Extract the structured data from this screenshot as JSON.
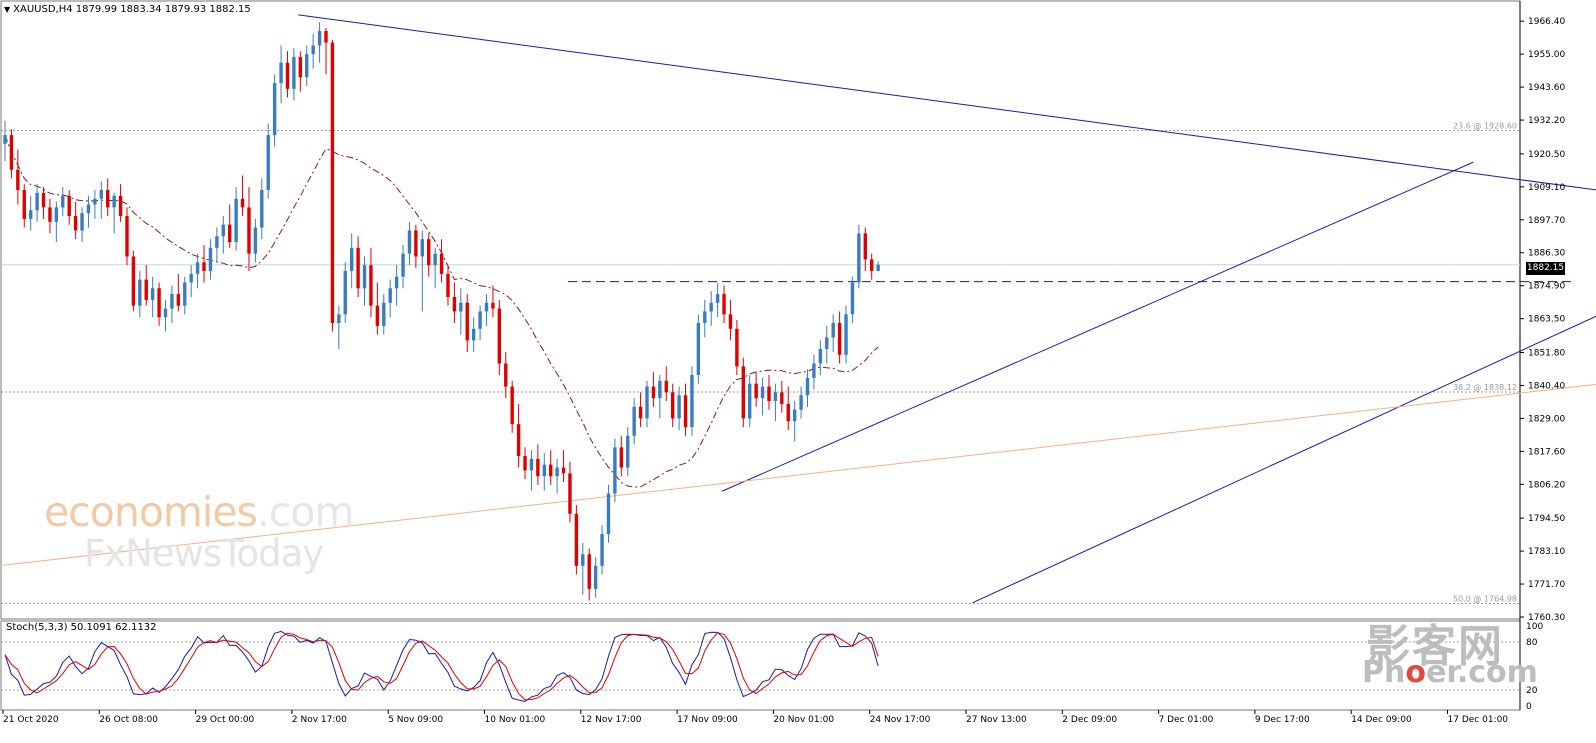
{
  "header": {
    "symbol_line": "XAUUSD,H4  1879.99 1883.34 1879.93 1882.15"
  },
  "stochastic": {
    "label": "Stoch(5,3,3) 50.1091 62.1132"
  },
  "watermarks": {
    "economies": "economies",
    "dotcom": ".com",
    "fxnews": "FxNewsToday",
    "phoer_cn": "影客网",
    "phoer_pre": "Ph",
    "phoer_o": "o",
    "phoer_post": "er.com"
  },
  "current_price": "1882.15",
  "chart_data": {
    "type": "candlestick",
    "symbol": "XAUUSD",
    "timeframe": "H4",
    "ohlc_header": {
      "open": 1879.99,
      "high": 1883.34,
      "low": 1879.93,
      "close": 1882.15
    },
    "price_axis": {
      "ylim": [
        1760.3,
        1972.0
      ],
      "ticks": [
        1966.4,
        1955.0,
        1943.6,
        1932.2,
        1920.5,
        1909.1,
        1897.7,
        1886.3,
        1874.9,
        1863.5,
        1851.8,
        1840.4,
        1829.0,
        1817.6,
        1806.2,
        1794.5,
        1783.1,
        1771.7,
        1760.3
      ],
      "tick_labels": [
        "1966.40",
        "1955.00",
        "1943.60",
        "1932.20",
        "1920.50",
        "1909.10",
        "1897.70",
        "1886.30",
        "1874.90",
        "1863.50",
        "1851.80",
        "1840.40",
        "1829.00",
        "1817.60",
        "1806.20",
        "1794.50",
        "1783.10",
        "1771.70",
        "1760.30"
      ]
    },
    "time_axis": {
      "labels": [
        "21 Oct 2020",
        "26 Oct 08:00",
        "29 Oct 00:00",
        "2 Nov 17:00",
        "5 Nov 09:00",
        "10 Nov 01:00",
        "12 Nov 17:00",
        "17 Nov 09:00",
        "20 Nov 01:00",
        "24 Nov 17:00",
        "27 Nov 13:00",
        "2 Dec 09:00",
        "7 Dec 01:00",
        "9 Dec 17:00",
        "14 Dec 09:00",
        "17 Dec 01:00"
      ],
      "label_bars": [
        0,
        15,
        30,
        45,
        60,
        75,
        90,
        105,
        120,
        135,
        150,
        165,
        180,
        195,
        210,
        225
      ]
    },
    "fib_levels": [
      {
        "label": "23.6 @ 1928.60",
        "price": 1928.6
      },
      {
        "label": "38.2 @ 1838.12",
        "price": 1838.12
      },
      {
        "label": "50.0 @ 1764.98",
        "price": 1764.98
      }
    ],
    "trendlines": [
      {
        "name": "descending-resistance",
        "from": {
          "bar": 46,
          "price": 1968.6
        },
        "to": {
          "bar": 305,
          "price": 1891.0
        },
        "color": "#1a1aa8"
      },
      {
        "name": "channel-upper",
        "from": {
          "bar": 112,
          "price": 1803.8
        },
        "to": {
          "bar": 229,
          "price": 1917.6
        },
        "color": "#1a1aa8"
      },
      {
        "name": "channel-lower",
        "from": {
          "bar": 151,
          "price": 1765.2
        },
        "to": {
          "bar": 263,
          "price": 1879.5
        },
        "color": "#1a1aa8"
      },
      {
        "name": "long-term-support",
        "from": {
          "bar": 0,
          "price": 1778.2
        },
        "to": {
          "bar": 353,
          "price": 1867.2
        },
        "color": "#f5b08a"
      }
    ],
    "horizontal_levels": [
      {
        "name": "dashed-support",
        "price": 1876.3,
        "from_bar": 88,
        "to_bar": 245,
        "color": "#1a1aa8"
      }
    ],
    "current_price": 1882.15,
    "candles": [
      [
        1924,
        1932,
        1918,
        1927
      ],
      [
        1927,
        1929,
        1912,
        1915
      ],
      [
        1915,
        1922,
        1903,
        1908
      ],
      [
        1908,
        1910,
        1895,
        1898
      ],
      [
        1898,
        1906,
        1894,
        1901
      ],
      [
        1901,
        1910,
        1897,
        1907
      ],
      [
        1907,
        1909,
        1898,
        1902
      ],
      [
        1902,
        1905,
        1893,
        1897
      ],
      [
        1897,
        1904,
        1890,
        1902
      ],
      [
        1902,
        1909,
        1899,
        1906
      ],
      [
        1906,
        1908,
        1896,
        1899
      ],
      [
        1899,
        1904,
        1891,
        1894
      ],
      [
        1894,
        1902,
        1890,
        1900
      ],
      [
        1900,
        1906,
        1895,
        1903
      ],
      [
        1903,
        1908,
        1898,
        1905
      ],
      [
        1905,
        1911,
        1898,
        1908
      ],
      [
        1908,
        1912,
        1899,
        1902
      ],
      [
        1902,
        1907,
        1893,
        1906
      ],
      [
        1906,
        1910,
        1897,
        1899
      ],
      [
        1899,
        1902,
        1882,
        1885
      ],
      [
        1885,
        1887,
        1866,
        1868
      ],
      [
        1868,
        1880,
        1864,
        1877
      ],
      [
        1877,
        1882,
        1868,
        1870
      ],
      [
        1870,
        1878,
        1864,
        1874
      ],
      [
        1874,
        1876,
        1861,
        1864
      ],
      [
        1864,
        1870,
        1859,
        1867
      ],
      [
        1867,
        1875,
        1862,
        1872
      ],
      [
        1872,
        1879,
        1866,
        1868
      ],
      [
        1868,
        1878,
        1865,
        1876
      ],
      [
        1876,
        1882,
        1871,
        1879
      ],
      [
        1879,
        1886,
        1874,
        1883
      ],
      [
        1883,
        1889,
        1876,
        1880
      ],
      [
        1880,
        1891,
        1877,
        1888
      ],
      [
        1888,
        1895,
        1883,
        1892
      ],
      [
        1892,
        1899,
        1886,
        1896
      ],
      [
        1896,
        1903,
        1888,
        1890
      ],
      [
        1890,
        1909,
        1887,
        1905
      ],
      [
        1905,
        1913,
        1899,
        1902
      ],
      [
        1902,
        1909,
        1880,
        1886
      ],
      [
        1886,
        1898,
        1883,
        1895
      ],
      [
        1895,
        1912,
        1891,
        1908
      ],
      [
        1908,
        1931,
        1905,
        1927
      ],
      [
        1927,
        1948,
        1923,
        1945
      ],
      [
        1945,
        1958,
        1938,
        1952
      ],
      [
        1952,
        1956,
        1940,
        1943
      ],
      [
        1943,
        1957,
        1939,
        1954
      ],
      [
        1954,
        1956,
        1942,
        1947
      ],
      [
        1947,
        1958,
        1944,
        1955
      ],
      [
        1955,
        1962,
        1950,
        1958
      ],
      [
        1958,
        1966,
        1952,
        1963
      ],
      [
        1963,
        1964,
        1948,
        1959
      ],
      [
        1959,
        1960,
        1859,
        1862
      ],
      [
        1862,
        1868,
        1853,
        1865
      ],
      [
        1865,
        1883,
        1862,
        1880
      ],
      [
        1880,
        1893,
        1874,
        1888
      ],
      [
        1888,
        1892,
        1871,
        1874
      ],
      [
        1874,
        1885,
        1868,
        1882
      ],
      [
        1882,
        1888,
        1864,
        1868
      ],
      [
        1868,
        1876,
        1858,
        1861
      ],
      [
        1861,
        1872,
        1858,
        1869
      ],
      [
        1869,
        1877,
        1864,
        1874
      ],
      [
        1874,
        1882,
        1868,
        1878
      ],
      [
        1878,
        1889,
        1874,
        1886
      ],
      [
        1886,
        1897,
        1882,
        1894
      ],
      [
        1894,
        1896,
        1881,
        1885
      ],
      [
        1885,
        1894,
        1866,
        1891
      ],
      [
        1891,
        1893,
        1878,
        1882
      ],
      [
        1882,
        1888,
        1874,
        1886
      ],
      [
        1886,
        1891,
        1876,
        1879
      ],
      [
        1879,
        1882,
        1868,
        1871
      ],
      [
        1871,
        1876,
        1862,
        1866
      ],
      [
        1866,
        1874,
        1858,
        1869
      ],
      [
        1869,
        1872,
        1852,
        1856
      ],
      [
        1856,
        1864,
        1852,
        1860
      ],
      [
        1860,
        1868,
        1856,
        1866
      ],
      [
        1866,
        1872,
        1861,
        1869
      ],
      [
        1869,
        1875,
        1864,
        1867
      ],
      [
        1867,
        1870,
        1844,
        1848
      ],
      [
        1848,
        1852,
        1836,
        1840
      ],
      [
        1840,
        1842,
        1824,
        1827
      ],
      [
        1827,
        1834,
        1812,
        1816
      ],
      [
        1816,
        1819,
        1808,
        1811
      ],
      [
        1811,
        1818,
        1804,
        1815
      ],
      [
        1815,
        1820,
        1806,
        1809
      ],
      [
        1809,
        1817,
        1804,
        1813
      ],
      [
        1813,
        1818,
        1806,
        1809
      ],
      [
        1809,
        1815,
        1803,
        1812
      ],
      [
        1812,
        1818,
        1807,
        1810
      ],
      [
        1810,
        1814,
        1793,
        1796
      ],
      [
        1796,
        1799,
        1775,
        1778
      ],
      [
        1778,
        1786,
        1768,
        1782
      ],
      [
        1782,
        1784,
        1766,
        1770
      ],
      [
        1770,
        1781,
        1767,
        1778
      ],
      [
        1778,
        1792,
        1775,
        1789
      ],
      [
        1789,
        1806,
        1786,
        1803
      ],
      [
        1803,
        1822,
        1800,
        1819
      ],
      [
        1819,
        1823,
        1809,
        1812
      ],
      [
        1812,
        1826,
        1809,
        1823
      ],
      [
        1823,
        1836,
        1820,
        1833
      ],
      [
        1833,
        1838,
        1826,
        1829
      ],
      [
        1829,
        1842,
        1826,
        1840
      ],
      [
        1840,
        1845,
        1833,
        1836
      ],
      [
        1836,
        1844,
        1829,
        1842
      ],
      [
        1842,
        1847,
        1835,
        1838
      ],
      [
        1838,
        1841,
        1826,
        1829
      ],
      [
        1829,
        1840,
        1825,
        1837
      ],
      [
        1837,
        1841,
        1823,
        1826
      ],
      [
        1826,
        1847,
        1823,
        1844
      ],
      [
        1844,
        1865,
        1841,
        1862
      ],
      [
        1862,
        1870,
        1857,
        1866
      ],
      [
        1866,
        1873,
        1861,
        1869
      ],
      [
        1869,
        1876,
        1864,
        1872
      ],
      [
        1872,
        1875,
        1862,
        1865
      ],
      [
        1865,
        1870,
        1856,
        1860
      ],
      [
        1860,
        1863,
        1844,
        1847
      ],
      [
        1847,
        1850,
        1826,
        1829
      ],
      [
        1829,
        1844,
        1826,
        1841
      ],
      [
        1841,
        1845,
        1833,
        1836
      ],
      [
        1836,
        1843,
        1830,
        1840
      ],
      [
        1840,
        1844,
        1832,
        1835
      ],
      [
        1835,
        1841,
        1828,
        1838
      ],
      [
        1838,
        1842,
        1831,
        1834
      ],
      [
        1834,
        1840,
        1825,
        1828
      ],
      [
        1828,
        1835,
        1821,
        1832
      ],
      [
        1832,
        1840,
        1829,
        1837
      ],
      [
        1837,
        1846,
        1833,
        1843
      ],
      [
        1843,
        1851,
        1839,
        1848
      ],
      [
        1848,
        1856,
        1844,
        1853
      ],
      [
        1853,
        1861,
        1848,
        1857
      ],
      [
        1857,
        1865,
        1852,
        1862
      ],
      [
        1862,
        1866,
        1848,
        1851
      ],
      [
        1851,
        1868,
        1848,
        1865
      ],
      [
        1865,
        1878,
        1862,
        1876
      ],
      [
        1876,
        1896,
        1874,
        1893
      ],
      [
        1893,
        1895,
        1880,
        1884
      ],
      [
        1884,
        1886,
        1877,
        1880
      ],
      [
        1879.99,
        1883.34,
        1879.93,
        1882.15
      ]
    ],
    "stochastic": {
      "label": "Stoch(5,3,3) 50.1091 62.1132",
      "k": 50.1091,
      "d": 62.1132,
      "ylim": [
        0,
        100
      ],
      "levels": [
        20,
        80
      ],
      "tick_labels": [
        "100",
        "80",
        "20",
        "0"
      ],
      "main_line_color": "#1a1aa8",
      "signal_line_color": "#e00000"
    },
    "colors": {
      "up": "#3a7cc0",
      "down": "#e00000",
      "ma": "#8b1a1a",
      "grid": "#c8c8c8"
    },
    "grid": false,
    "legend": "top-left"
  }
}
